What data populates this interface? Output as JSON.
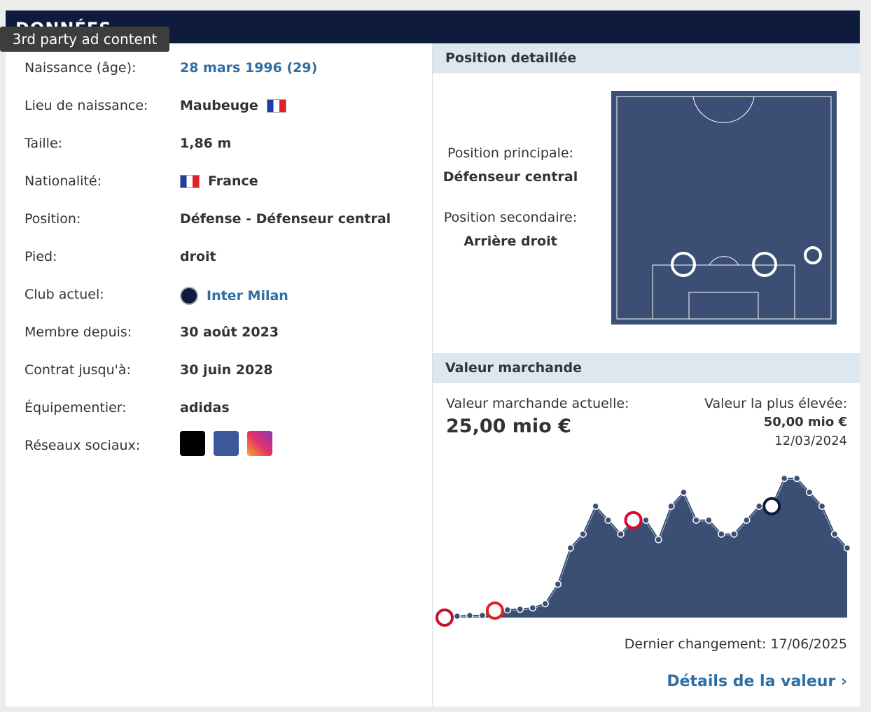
{
  "tooltip": "3rd party ad content",
  "header": {
    "title": "DONNÉES"
  },
  "info": {
    "rows": [
      {
        "label": "Naissance (âge):",
        "value": "28 mars 1996 (29)"
      },
      {
        "label": "Lieu de naissance:",
        "value": "Maubeuge"
      },
      {
        "label": "Taille:",
        "value": "1,86 m"
      },
      {
        "label": "Nationalité:",
        "value": "France"
      },
      {
        "label": "Position:",
        "value": "Défense - Défenseur central"
      },
      {
        "label": "Pied:",
        "value": "droit"
      },
      {
        "label": "Club actuel:",
        "value": "Inter Milan"
      },
      {
        "label": "Membre depuis:",
        "value": "30 août 2023"
      },
      {
        "label": "Contrat jusqu'à:",
        "value": "30 juin 2028"
      },
      {
        "label": "Équipementier:",
        "value": "adidas"
      },
      {
        "label": "Réseaux sociaux:"
      }
    ]
  },
  "position": {
    "title": "Position detaillée",
    "main_label": "Position principale:",
    "main": "Défenseur central",
    "secondary_label": "Position secondaire:",
    "secondary": "Arrière droit"
  },
  "market": {
    "title": "Valeur marchande",
    "current_label": "Valeur marchande actuelle:",
    "current": "25,00 mio €",
    "highest_label": "Valeur la plus élevée:",
    "highest": "50,00 mio €",
    "highest_date": "12/03/2024",
    "last_change": "Dernier changement: 17/06/2025",
    "details_link": "Détails de la valeur"
  },
  "chart_data": {
    "type": "line",
    "color": "#3b4f75",
    "categories": [
      null,
      null,
      null,
      null,
      null,
      null,
      null,
      null,
      null,
      null,
      null,
      null,
      null,
      null,
      null,
      null,
      null,
      null,
      null,
      null,
      null,
      null,
      null,
      null,
      null,
      null,
      null,
      null,
      null,
      null,
      null,
      null,
      null
    ],
    "values": [
      0,
      0.5,
      0.75,
      0.75,
      2.5,
      2.75,
      3,
      3.5,
      5,
      12,
      25,
      30,
      40,
      35,
      30,
      35,
      35,
      28,
      40,
      45,
      35,
      35,
      30,
      30,
      35,
      40,
      40,
      50,
      50,
      45,
      40,
      30,
      25
    ]
  }
}
